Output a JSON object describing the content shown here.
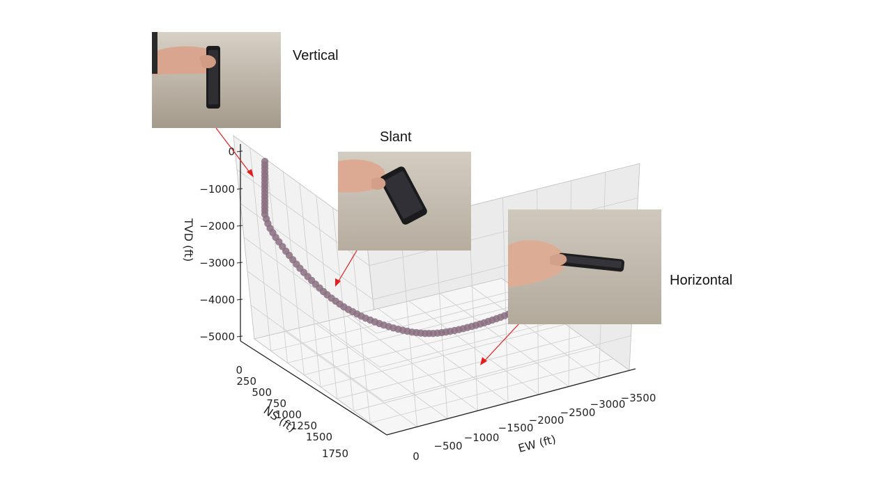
{
  "chart_data": {
    "type": "scatter",
    "dimensions": 3,
    "xlabel": "EW (ft)",
    "ylabel": "NS (ft)",
    "zlabel": "TVD (ft)",
    "xticks": [
      "0",
      "−500",
      "−1000",
      "−1500",
      "−2000",
      "−2500",
      "−3000",
      "−3500"
    ],
    "yticks": [
      "0",
      "250",
      "500",
      "750",
      "1000",
      "1250",
      "1500",
      "1750"
    ],
    "zticks": [
      "0",
      "−1000",
      "−2000",
      "−3000",
      "−4000",
      "−5000"
    ],
    "xlim": [
      0,
      -3600
    ],
    "ylim": [
      0,
      1800
    ],
    "zlim": [
      -5000,
      300
    ],
    "grid": true,
    "marker_color": "#8a6f80",
    "series": [
      {
        "points": [
          [
            0,
            0,
            0
          ],
          [
            0,
            0,
            -100
          ],
          [
            0,
            0,
            -200
          ],
          [
            0,
            0,
            -300
          ],
          [
            0,
            0,
            -400
          ],
          [
            0,
            0,
            -500
          ],
          [
            0,
            0,
            -600
          ],
          [
            0,
            0,
            -700
          ],
          [
            0,
            0,
            -800
          ],
          [
            0,
            0,
            -900
          ],
          [
            0,
            0,
            -1000
          ],
          [
            0,
            0,
            -1100
          ],
          [
            0,
            0,
            -1200
          ],
          [
            0,
            0,
            -1300
          ],
          [
            0,
            0,
            -1400
          ],
          [
            0,
            0,
            -1500
          ],
          [
            -10,
            10,
            -1620
          ],
          [
            -20,
            22,
            -1740
          ],
          [
            -35,
            38,
            -1860
          ],
          [
            -55,
            55,
            -1970
          ],
          [
            -75,
            75,
            -2080
          ],
          [
            -100,
            95,
            -2190
          ],
          [
            -125,
            118,
            -2300
          ],
          [
            -150,
            140,
            -2410
          ],
          [
            -175,
            162,
            -2510
          ],
          [
            -200,
            186,
            -2610
          ],
          [
            -225,
            210,
            -2710
          ],
          [
            -250,
            234,
            -2805
          ],
          [
            -280,
            258,
            -2900
          ],
          [
            -310,
            282,
            -2995
          ],
          [
            -340,
            306,
            -3085
          ],
          [
            -370,
            330,
            -3170
          ],
          [
            -400,
            355,
            -3255
          ],
          [
            -430,
            378,
            -3335
          ],
          [
            -460,
            400,
            -3410
          ],
          [
            -495,
            425,
            -3485
          ],
          [
            -530,
            448,
            -3555
          ],
          [
            -565,
            470,
            -3620
          ],
          [
            -600,
            492,
            -3685
          ],
          [
            -640,
            515,
            -3745
          ],
          [
            -680,
            535,
            -3800
          ],
          [
            -720,
            555,
            -3855
          ],
          [
            -760,
            575,
            -3905
          ],
          [
            -800,
            595,
            -3955
          ],
          [
            -845,
            615,
            -4000
          ],
          [
            -890,
            635,
            -4045
          ],
          [
            -935,
            652,
            -4090
          ],
          [
            -980,
            670,
            -4130
          ],
          [
            -1030,
            688,
            -4170
          ],
          [
            -1080,
            705,
            -4210
          ],
          [
            -1130,
            722,
            -4245
          ],
          [
            -1180,
            738,
            -4280
          ],
          [
            -1230,
            752,
            -4310
          ],
          [
            -1280,
            766,
            -4340
          ],
          [
            -1330,
            778,
            -4365
          ],
          [
            -1380,
            790,
            -4385
          ],
          [
            -1430,
            800,
            -4405
          ],
          [
            -1480,
            808,
            -4420
          ],
          [
            -1530,
            815,
            -4435
          ],
          [
            -1585,
            822,
            -4445
          ],
          [
            -1640,
            828,
            -4452
          ],
          [
            -1695,
            832,
            -4458
          ],
          [
            -1750,
            836,
            -4462
          ],
          [
            -1810,
            840,
            -4465
          ],
          [
            -1870,
            842,
            -4467
          ],
          [
            -1930,
            844,
            -4468
          ],
          [
            -1990,
            845,
            -4468
          ],
          [
            -2050,
            846,
            -4467
          ],
          [
            -2110,
            846,
            -4466
          ],
          [
            -2170,
            846,
            -4464
          ],
          [
            -2230,
            845,
            -4462
          ],
          [
            -2290,
            844,
            -4458
          ],
          [
            -2350,
            843,
            -4453
          ],
          [
            -2410,
            842,
            -4447
          ],
          [
            -2470,
            840,
            -4440
          ],
          [
            -2530,
            838,
            -4432
          ],
          [
            -2590,
            836,
            -4423
          ],
          [
            -2650,
            834,
            -4413
          ],
          [
            -2710,
            832,
            -4402
          ],
          [
            -2770,
            830,
            -4390
          ],
          [
            -2830,
            828,
            -4377
          ],
          [
            -2890,
            826,
            -4363
          ],
          [
            -2950,
            824,
            -4348
          ],
          [
            -3010,
            822,
            -4332
          ],
          [
            -3070,
            820,
            -4315
          ],
          [
            -3130,
            818,
            -4297
          ],
          [
            -3190,
            816,
            -4278
          ],
          [
            -3250,
            814,
            -4258
          ]
        ]
      }
    ]
  },
  "callouts": {
    "vertical": "Vertical",
    "slant": "Slant",
    "horizontal": "Horizontal"
  },
  "colors": {
    "arrow": "#e02020",
    "pane_left": "#f2f2f2",
    "pane_right": "#ebebeb",
    "pane_floor": "#f6f6f6",
    "grid": "#cfcfcf",
    "wall": "#cbc3b6"
  }
}
